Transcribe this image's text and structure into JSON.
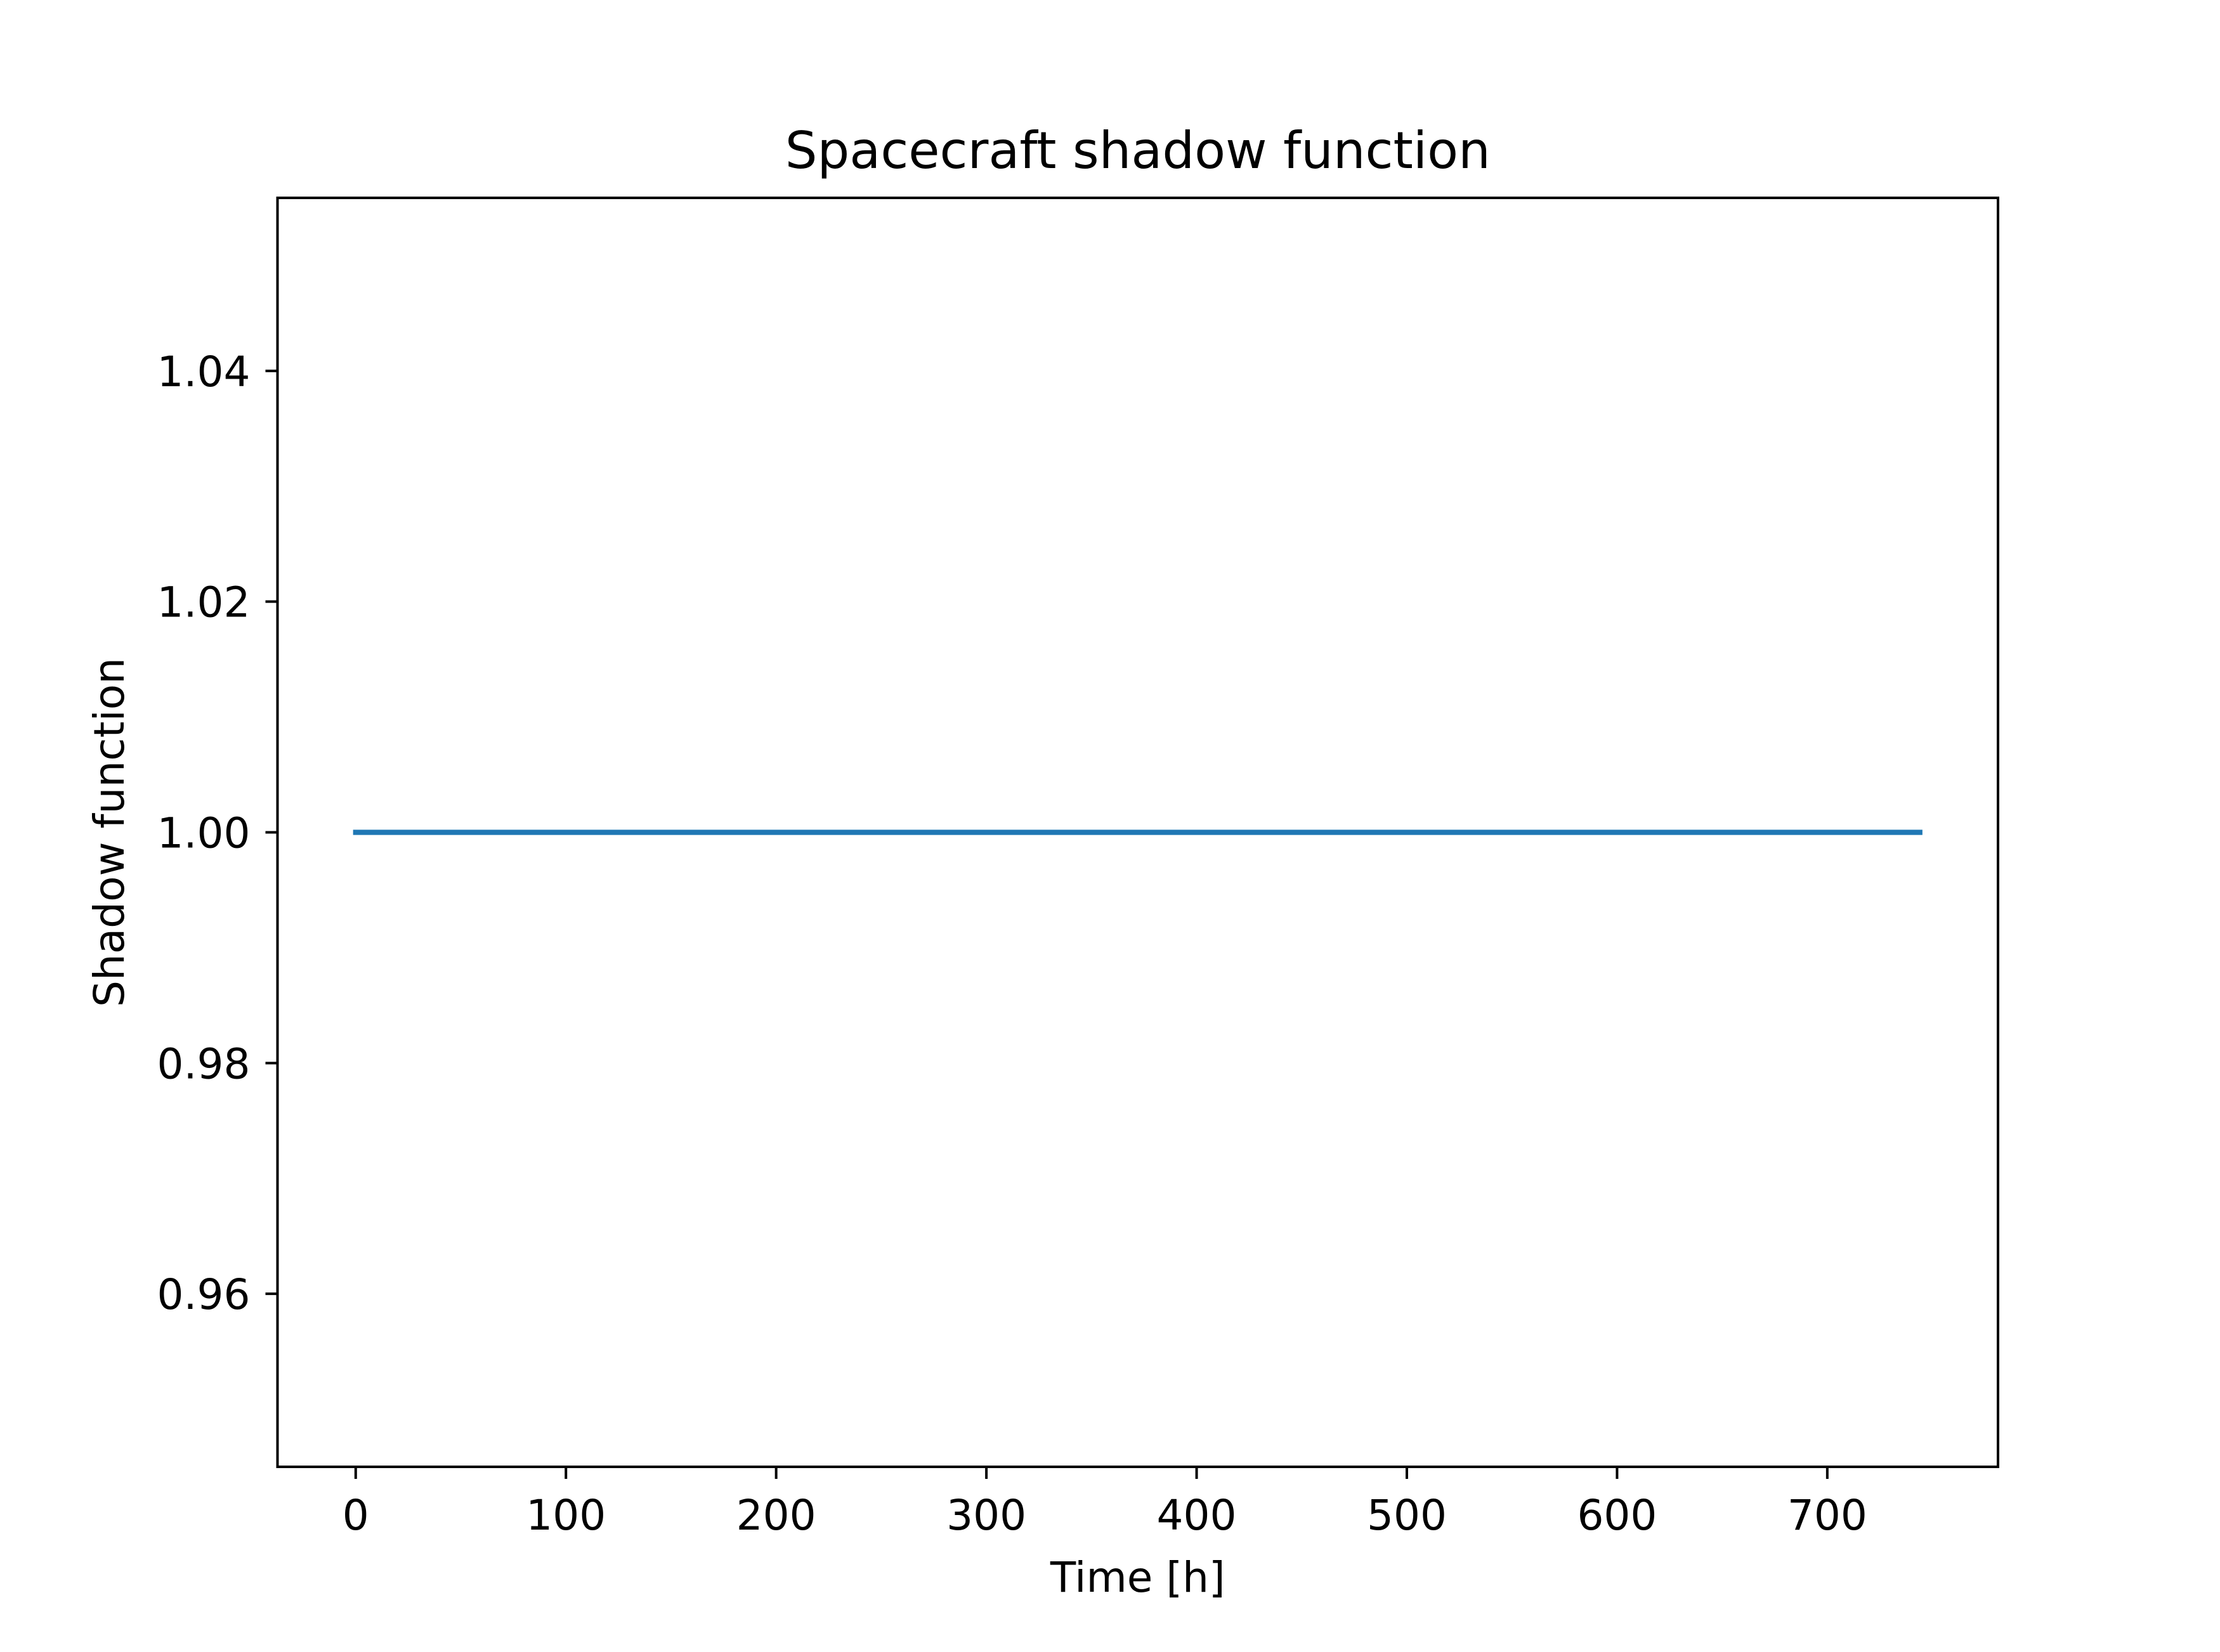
{
  "chart_data": {
    "type": "line",
    "title": "Spacecraft shadow function",
    "xlabel": "Time [h]",
    "ylabel": "Shadow function",
    "xlim": [
      -37.2,
      781.2
    ],
    "ylim": [
      0.945,
      1.055
    ],
    "xticks": [
      0,
      100,
      200,
      300,
      400,
      500,
      600,
      700
    ],
    "xtick_labels": [
      "0",
      "100",
      "200",
      "300",
      "400",
      "500",
      "600",
      "700"
    ],
    "yticks": [
      0.96,
      0.98,
      1.0,
      1.02,
      1.04
    ],
    "ytick_labels": [
      "0.96",
      "0.98",
      "1.00",
      "1.02",
      "1.04"
    ],
    "grid": false,
    "legend": false,
    "series": [
      {
        "color": "#1f77b4",
        "x": [
          0,
          744
        ],
        "y": [
          1.0,
          1.0
        ]
      }
    ]
  }
}
